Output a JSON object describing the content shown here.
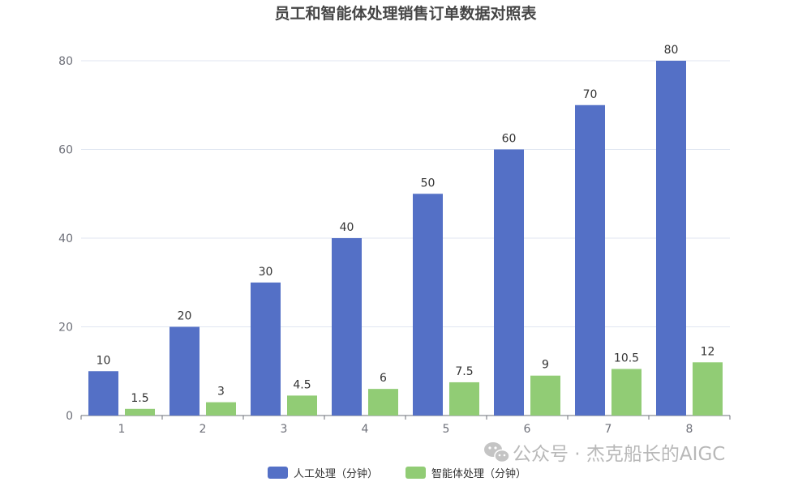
{
  "chart_data": {
    "type": "bar",
    "title": "员工和智能体处理销售订单数据对照表",
    "categories": [
      "1",
      "2",
      "3",
      "4",
      "5",
      "6",
      "7",
      "8"
    ],
    "series": [
      {
        "name": "人工处理（分钟）",
        "values": [
          10,
          20,
          30,
          40,
          50,
          60,
          70,
          80
        ],
        "labels": [
          "10",
          "20",
          "30",
          "40",
          "50",
          "60",
          "70",
          "80"
        ],
        "color": "#5470c6"
      },
      {
        "name": "智能体处理（分钟）",
        "values": [
          1.5,
          3,
          4.5,
          6,
          7.5,
          9,
          10.5,
          12
        ],
        "labels": [
          "1.5",
          "3",
          "4.5",
          "6",
          "7.5",
          "9",
          "10.5",
          "12"
        ],
        "color": "#91cc75"
      }
    ],
    "ylim": [
      0,
      80
    ],
    "yticks": [
      0,
      20,
      40,
      60,
      80
    ],
    "xlabel": "",
    "ylabel": "",
    "grid": true,
    "legend_position": "bottom-center",
    "data_labels": true
  },
  "colors": {
    "grid": "#e0e6f1",
    "axis": "#6e7079"
  },
  "watermark": {
    "text": "公众号 · 杰克船长的AIGC",
    "icon": "wechat-icon"
  }
}
